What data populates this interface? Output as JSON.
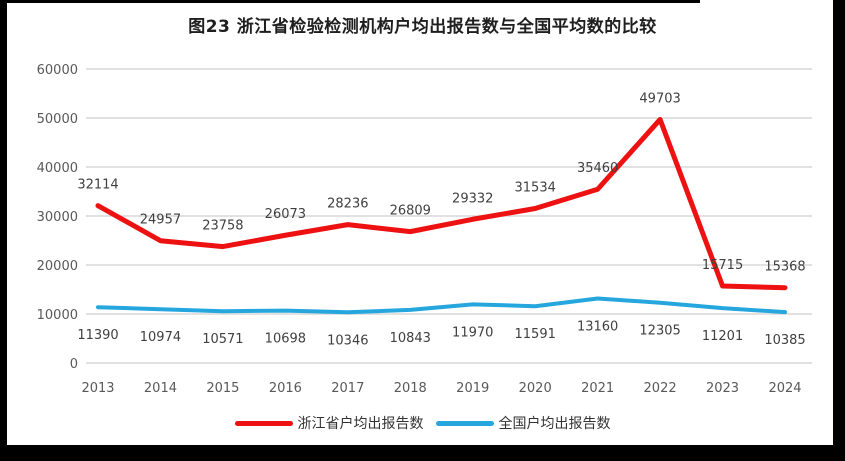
{
  "chart_data": {
    "type": "line",
    "title": "图23  浙江省检验检测机构户均出报告数与全国平均数的比较",
    "categories": [
      "2013",
      "2014",
      "2015",
      "2016",
      "2017",
      "2018",
      "2019",
      "2020",
      "2021",
      "2022",
      "2023",
      "2024"
    ],
    "series": [
      {
        "name": "浙江省户均出报告数",
        "color": "#ed1111",
        "label_position": "above",
        "values": [
          32114,
          24957,
          23758,
          26073,
          28236,
          26809,
          29332,
          31534,
          35460,
          49703,
          15715,
          15368
        ]
      },
      {
        "name": "全国户均出报告数",
        "color": "#25a7dd",
        "label_position": "below",
        "values": [
          11390,
          10974,
          10571,
          10698,
          10346,
          10843,
          11970,
          11591,
          13160,
          12305,
          11201,
          10385
        ]
      }
    ],
    "xlabel": "",
    "ylabel": "",
    "ylim": [
      0,
      60000
    ],
    "yticks": [
      0,
      10000,
      20000,
      30000,
      40000,
      50000,
      60000
    ],
    "grid": true,
    "legend_position": "bottom"
  },
  "colors": {
    "gridline": "#d7d7d7",
    "tick_text": "#595959",
    "data_label_text": "#404040",
    "title_text": "#1f1f1f",
    "frame": "#000000"
  }
}
